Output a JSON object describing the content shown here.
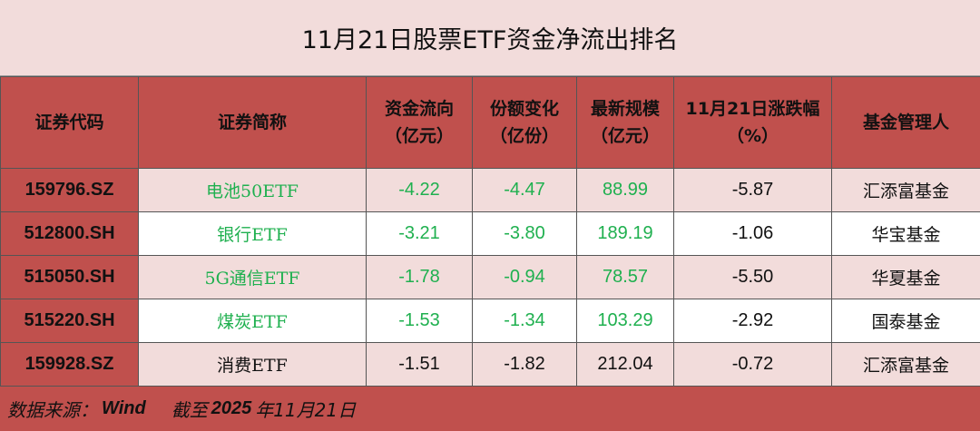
{
  "title": "11月21日股票ETF资金净流出排名",
  "headers": [
    [
      "证券代码",
      ""
    ],
    [
      "证券简称",
      ""
    ],
    [
      "资金流向",
      "（亿元）"
    ],
    [
      "份额变化",
      "（亿份）"
    ],
    [
      "最新规模",
      "（亿元）"
    ],
    [
      "11月21日涨跌幅",
      "（%）"
    ],
    [
      "基金管理人",
      ""
    ]
  ],
  "colors": {
    "header_red": "#c0504d",
    "pink": "#f2dcdb",
    "green": "#1fb04f"
  },
  "rows": [
    {
      "code": "159796.SZ",
      "name": "电池50ETF",
      "flow": "-4.22",
      "share": "-4.47",
      "scale": "88.99",
      "chg": "-5.87",
      "mgr": "汇添富基金",
      "green": true
    },
    {
      "code": "512800.SH",
      "name": "银行ETF",
      "flow": "-3.21",
      "share": "-3.80",
      "scale": "189.19",
      "chg": "-1.06",
      "mgr": "华宝基金",
      "green": true
    },
    {
      "code": "515050.SH",
      "name": "5G通信ETF",
      "flow": "-1.78",
      "share": "-0.94",
      "scale": "78.57",
      "chg": "-5.50",
      "mgr": "华夏基金",
      "green": true
    },
    {
      "code": "515220.SH",
      "name": "煤炭ETF",
      "flow": "-1.53",
      "share": "-1.34",
      "scale": "103.29",
      "chg": "-2.92",
      "mgr": "国泰基金",
      "green": true
    },
    {
      "code": "159928.SZ",
      "name": "消费ETF",
      "flow": "-1.51",
      "share": "-1.82",
      "scale": "212.04",
      "chg": "-0.72",
      "mgr": "汇添富基金",
      "green": false
    }
  ],
  "footer": {
    "source_label": "数据来源：",
    "source": "Wind",
    "asof_label": "截至",
    "year": "2025",
    "date": "年11月21日"
  }
}
